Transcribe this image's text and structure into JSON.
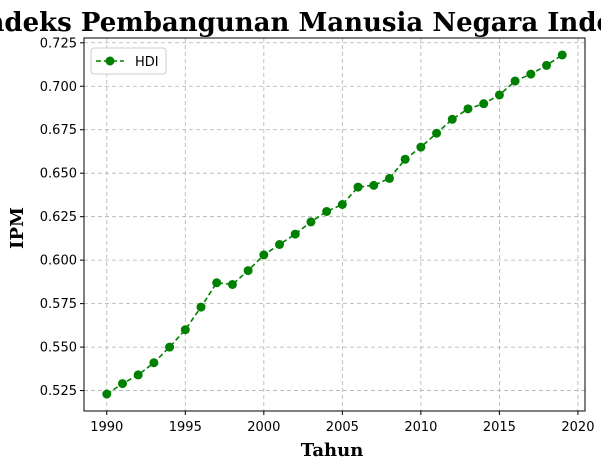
{
  "chart_data": {
    "type": "line",
    "title": "Indeks Pembangunan Manusia Negara Indonesia",
    "xlabel": "Tahun",
    "ylabel": "IPM",
    "x": [
      1990,
      1991,
      1992,
      1993,
      1994,
      1995,
      1996,
      1997,
      1998,
      1999,
      2000,
      2001,
      2002,
      2003,
      2004,
      2005,
      2006,
      2007,
      2008,
      2009,
      2010,
      2011,
      2012,
      2013,
      2014,
      2015,
      2016,
      2017,
      2018,
      2019
    ],
    "series": [
      {
        "name": "HDI",
        "color": "#008000",
        "line_style": "dashed",
        "marker": "circle",
        "values": [
          0.523,
          0.529,
          0.534,
          0.541,
          0.55,
          0.56,
          0.573,
          0.587,
          0.586,
          0.594,
          0.603,
          0.609,
          0.615,
          0.622,
          0.628,
          0.632,
          0.642,
          0.643,
          0.647,
          0.658,
          0.665,
          0.673,
          0.681,
          0.687,
          0.69,
          0.695,
          0.703,
          0.707,
          0.712,
          0.718
        ]
      }
    ],
    "xlim": [
      1988.55,
      2020.45
    ],
    "ylim": [
      0.51325,
      0.72775
    ],
    "xticks": [
      1990,
      1995,
      2000,
      2005,
      2010,
      2015,
      2020
    ],
    "yticks": [
      0.525,
      0.55,
      0.575,
      0.6,
      0.625,
      0.65,
      0.675,
      0.7,
      0.725
    ],
    "ytick_labels": [
      "0.525",
      "0.550",
      "0.575",
      "0.600",
      "0.625",
      "0.650",
      "0.675",
      "0.700",
      "0.725"
    ],
    "grid": true,
    "legend_position": "upper-left"
  }
}
